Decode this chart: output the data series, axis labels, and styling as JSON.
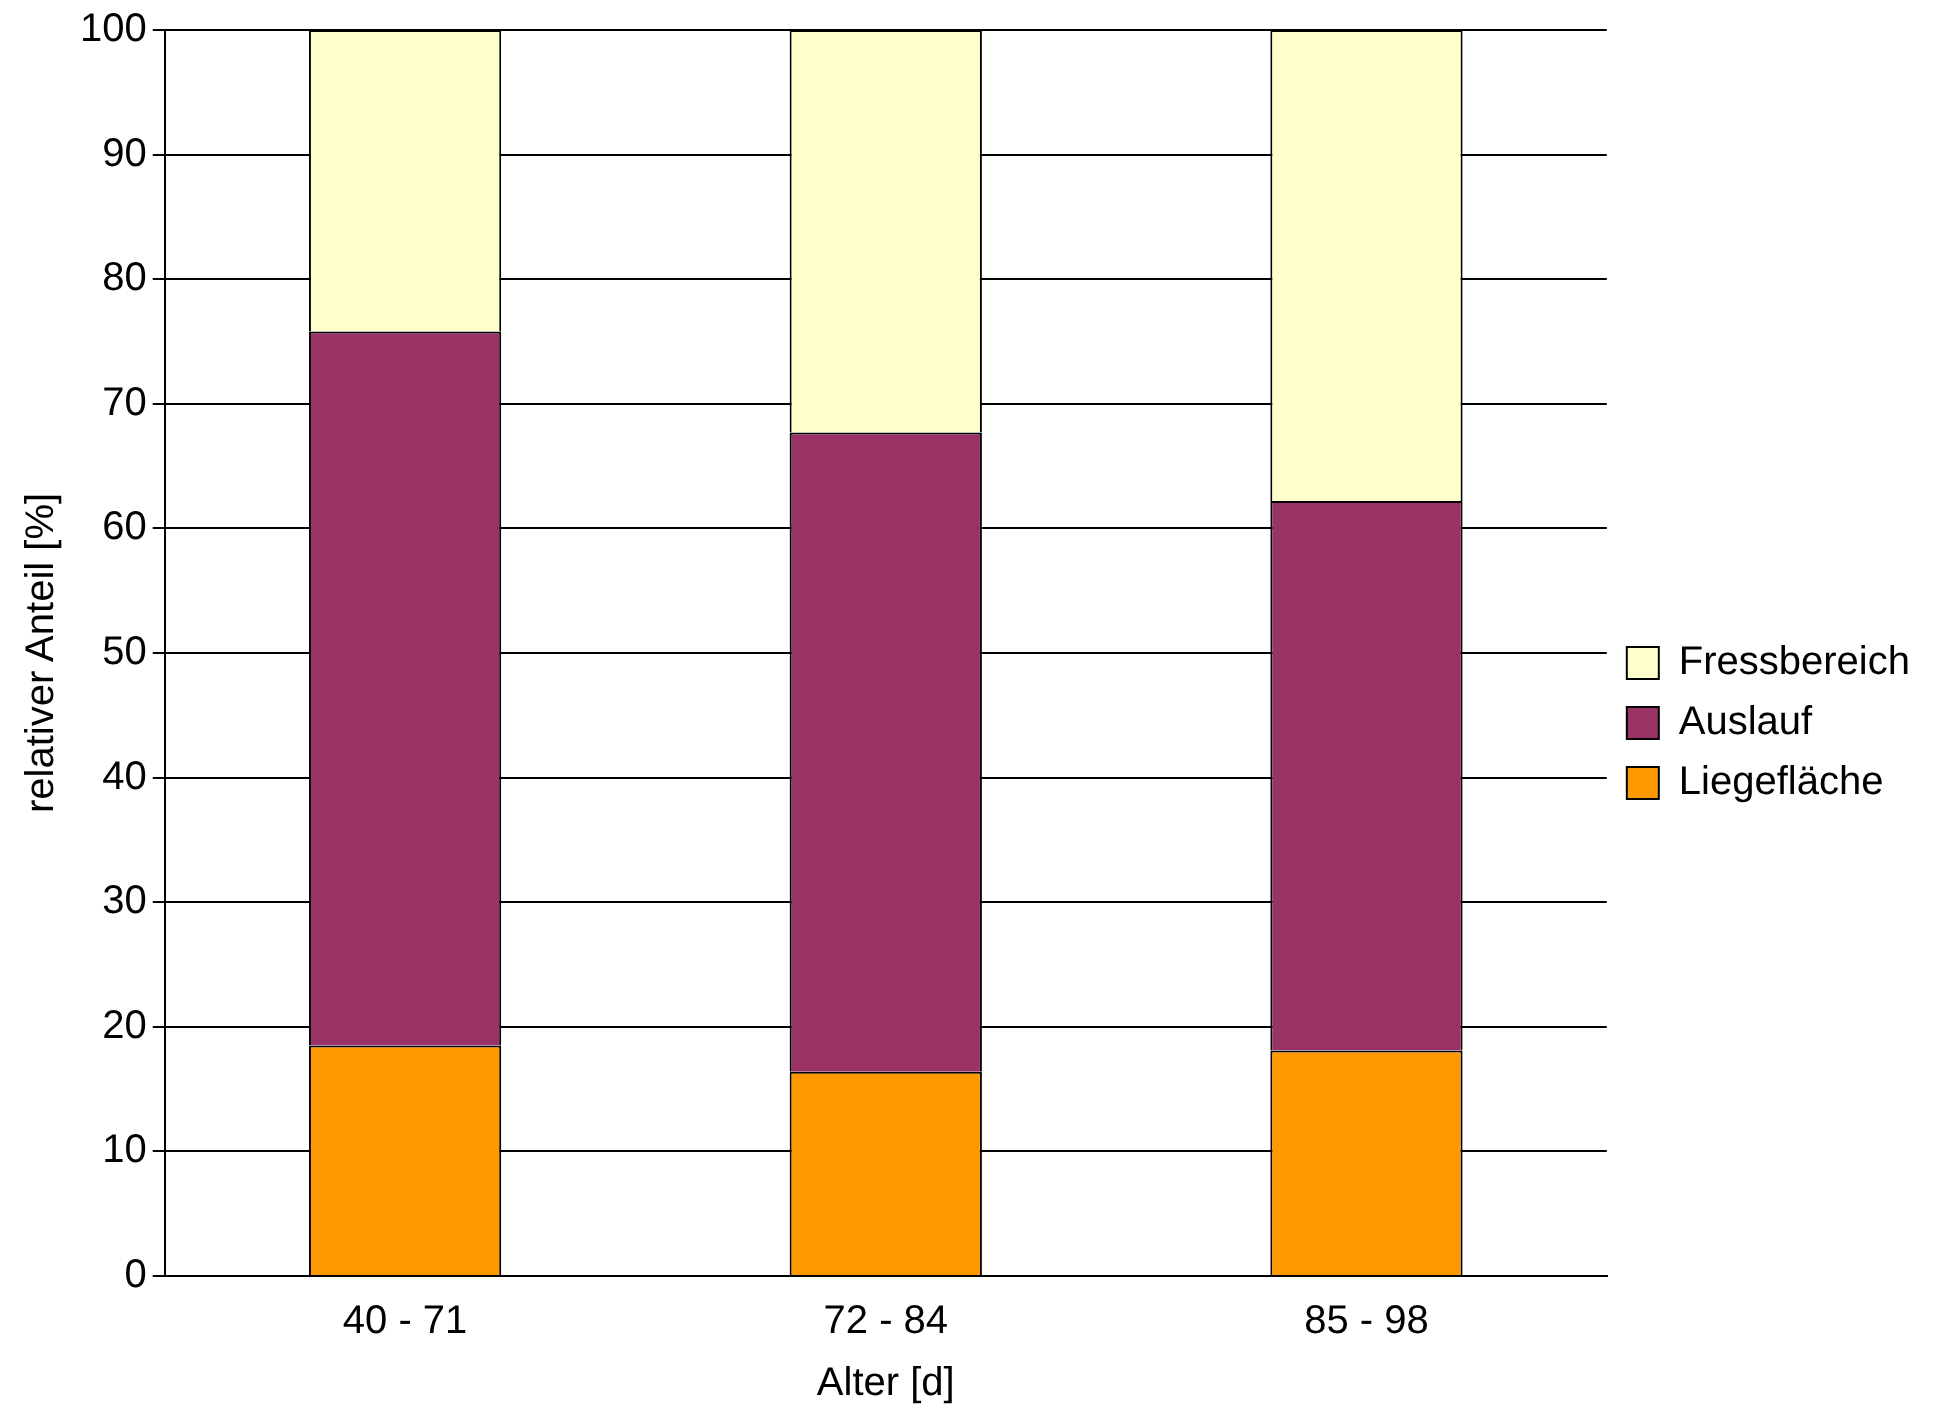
{
  "chart_data": {
    "type": "bar",
    "stacked": true,
    "xlabel": "Alter [d]",
    "ylabel": "relativer Anteil [%]",
    "categories": [
      "40 - 71",
      "72 - 84",
      "85 - 98"
    ],
    "series": [
      {
        "name": "Liegefläche",
        "color": "#ff9900",
        "values": [
          18.5,
          16.4,
          18.1
        ]
      },
      {
        "name": "Auslauf",
        "color": "#993366",
        "values": [
          57.3,
          51.3,
          44.1
        ]
      },
      {
        "name": "Fressbereich",
        "color": "#ffffcc",
        "values": [
          24.2,
          32.3,
          37.8
        ]
      }
    ],
    "ylim": [
      0,
      100
    ],
    "yticks": [
      0,
      10,
      20,
      30,
      40,
      50,
      60,
      70,
      80,
      90,
      100
    ],
    "grid": "y",
    "legend": "right"
  }
}
